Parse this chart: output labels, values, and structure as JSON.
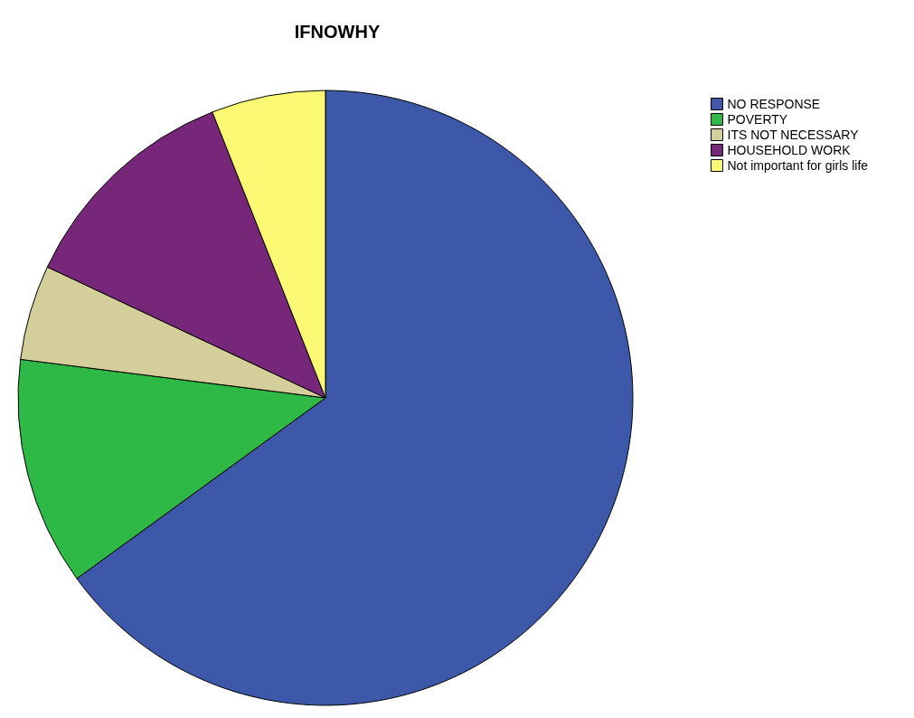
{
  "chart_data": {
    "type": "pie",
    "title": "IFNOWHY",
    "categories": [
      "NO RESPONSE",
      "POVERTY",
      "ITS NOT NECESSARY",
      "HOUSEHOLD WORK",
      "Not important for girls life"
    ],
    "values": [
      65,
      12,
      5,
      12,
      6
    ],
    "colors": [
      "#3d58a8",
      "#2eb845",
      "#d3ce9a",
      "#77277a",
      "#fbf874"
    ],
    "legend": "top right"
  }
}
